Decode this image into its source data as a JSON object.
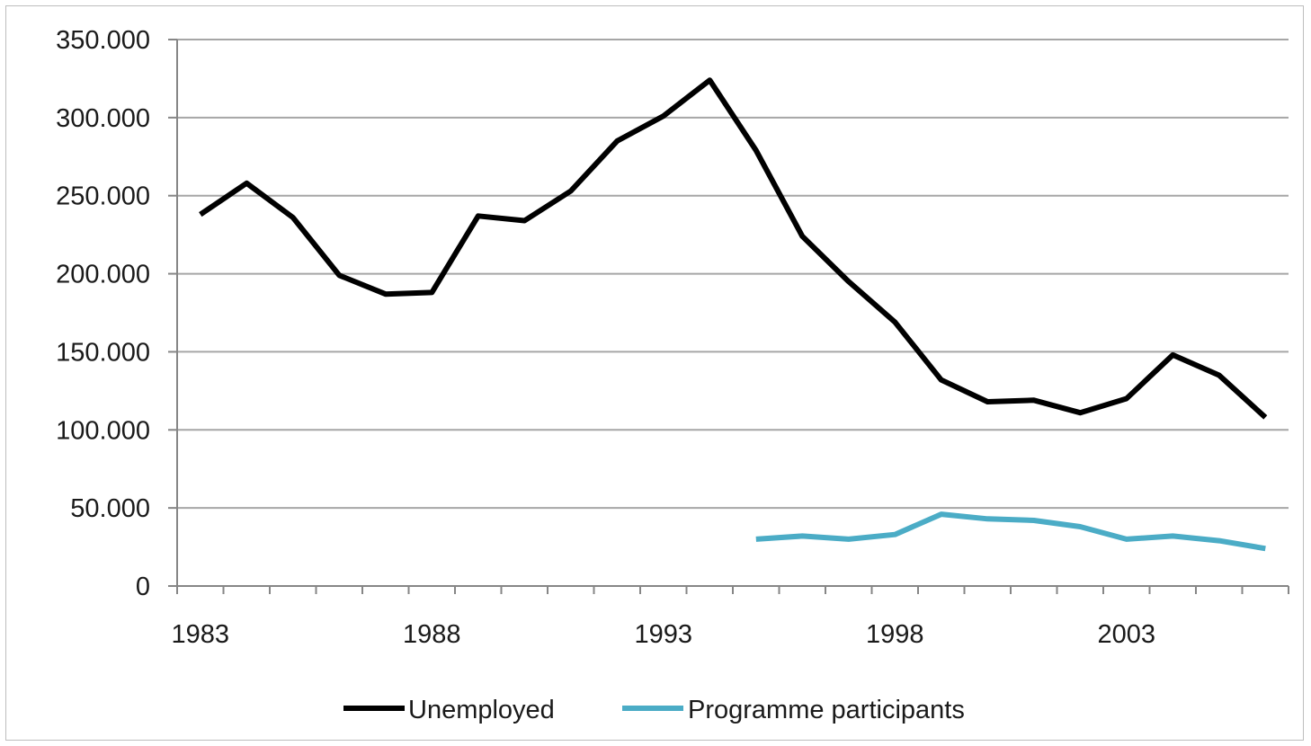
{
  "chart_data": {
    "type": "line",
    "title": "",
    "xlabel": "",
    "ylabel": "",
    "x": [
      1983,
      1984,
      1985,
      1986,
      1987,
      1988,
      1989,
      1990,
      1991,
      1992,
      1993,
      1994,
      1995,
      1996,
      1997,
      1998,
      1999,
      2000,
      2001,
      2002,
      2003,
      2004,
      2005,
      2006
    ],
    "xlim": [
      1982.5,
      2006.5
    ],
    "ylim": [
      0,
      350000
    ],
    "y_ticks": [
      0,
      50000,
      100000,
      150000,
      200000,
      250000,
      300000,
      350000
    ],
    "y_tick_labels": [
      "0",
      "50.000",
      "100.000",
      "150.000",
      "200.000",
      "250.000",
      "300.000",
      "350.000"
    ],
    "x_tick_labels": [
      {
        "year": 1983,
        "label": "1983"
      },
      {
        "year": 1988,
        "label": "1988"
      },
      {
        "year": 1993,
        "label": "1993"
      },
      {
        "year": 1998,
        "label": "1998"
      },
      {
        "year": 2003,
        "label": "2003"
      }
    ],
    "grid": "horizontal",
    "legend_position": "bottom",
    "series": [
      {
        "name": "Unemployed",
        "color": "#000000",
        "values": [
          238000,
          258000,
          236000,
          199000,
          187000,
          188000,
          237000,
          234000,
          253000,
          285000,
          301000,
          324000,
          279000,
          224000,
          195000,
          169000,
          132000,
          118000,
          119000,
          111000,
          120000,
          148000,
          135000,
          108000
        ]
      },
      {
        "name": "Programme participants",
        "color": "#4bacc6",
        "values": [
          null,
          null,
          null,
          null,
          null,
          null,
          null,
          null,
          null,
          null,
          null,
          null,
          30000,
          32000,
          30000,
          33000,
          46000,
          43000,
          42000,
          38000,
          30000,
          32000,
          29000,
          24000
        ]
      }
    ]
  }
}
